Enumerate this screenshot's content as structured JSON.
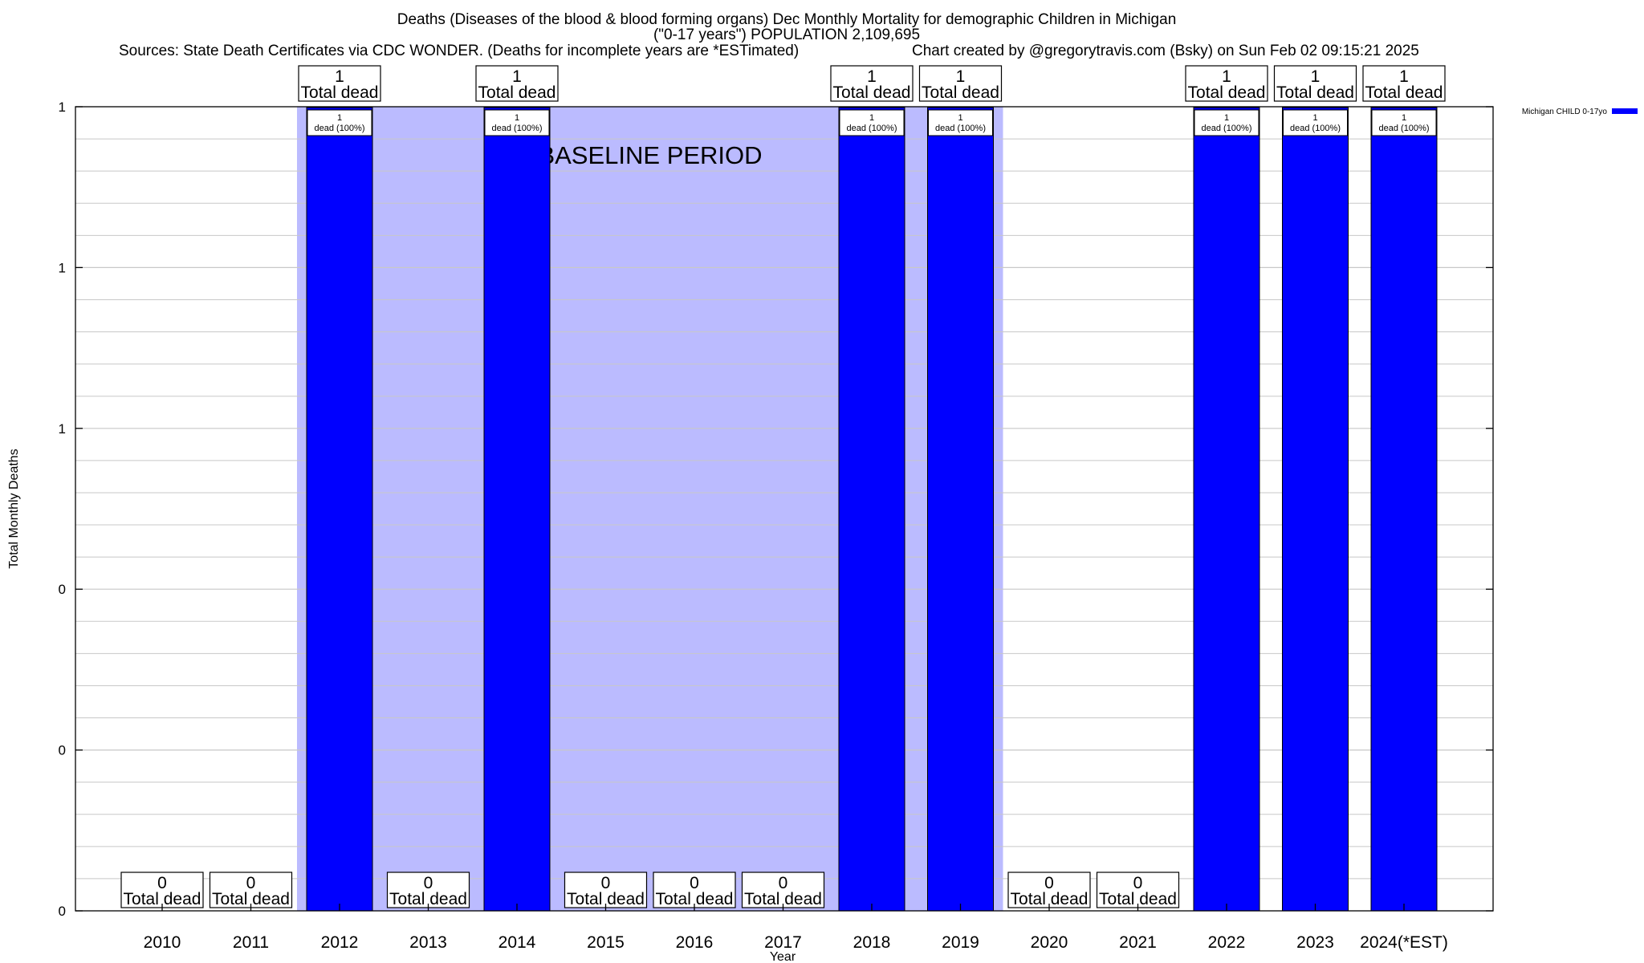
{
  "header": {
    "title_line1": "Deaths (Diseases of the blood & blood forming organs) Dec Monthly Mortality for demographic Children in Michigan",
    "title_line2": "(\"0-17 years\") POPULATION 2,109,695",
    "sources": "Sources: State Death Certificates via CDC WONDER. (Deaths for incomplete years are *ESTimated)",
    "credit": "Chart created by @gregorytravis.com (Bsky) on Sun Feb 02 09:15:21 2025"
  },
  "chart_data": {
    "type": "bar",
    "categories": [
      "2010",
      "2011",
      "2012",
      "2013",
      "2014",
      "2015",
      "2016",
      "2017",
      "2018",
      "2019",
      "2020",
      "2021",
      "2022",
      "2023",
      "2024(*EST)"
    ],
    "series": [
      {
        "name": "Michigan CHILD 0-17yo",
        "values": [
          0,
          0,
          1,
          0,
          1,
          0,
          0,
          0,
          1,
          1,
          0,
          0,
          1,
          1,
          1
        ],
        "color": "#0000ff"
      }
    ],
    "top_labels": [
      "0\nTotal dead",
      "0\nTotal dead",
      "1\nTotal dead",
      "0\nTotal dead",
      "1\nTotal dead",
      "0\nTotal dead",
      "0\nTotal dead",
      "0\nTotal dead",
      "1\nTotal dead",
      "1\nTotal dead",
      "0\nTotal dead",
      "0\nTotal dead",
      "1\nTotal dead",
      "1\nTotal dead",
      "1\nTotal dead"
    ],
    "inner_labels": [
      "",
      "",
      "1\ndead (100%)",
      "",
      "1\ndead (100%)",
      "",
      "",
      "",
      "1\ndead (100%)",
      "1\ndead (100%)",
      "",
      "",
      "1\ndead (100%)",
      "1\ndead (100%)",
      "1\ndead (100%)"
    ],
    "baseline_period": {
      "label": "BASELINE PERIOD",
      "from": "2012",
      "to": "2019",
      "color": "#bbbbff"
    },
    "xlabel": "Year",
    "ylabel": "Total Monthly Deaths",
    "ylim": [
      0,
      1
    ],
    "y_tick_labels": [
      "0",
      "0",
      "0",
      "1",
      "1",
      "1"
    ],
    "grid": true,
    "legend_position": "top-right",
    "colors": {
      "bar": "#0000ff",
      "baseline": "#bbbbff",
      "grid": "#c8c8c8"
    }
  }
}
